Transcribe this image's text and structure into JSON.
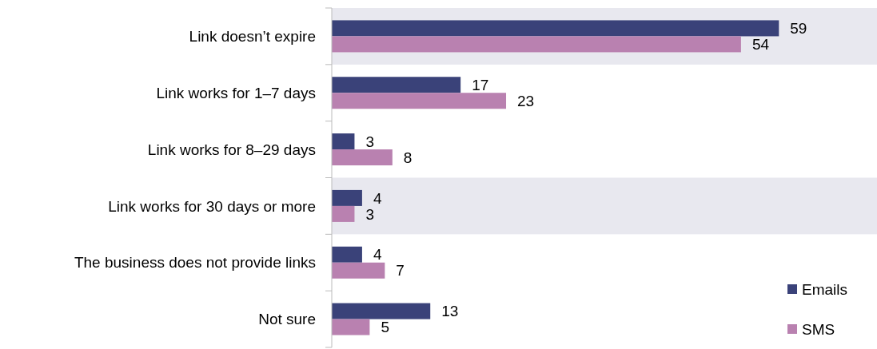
{
  "chart_data": {
    "type": "bar",
    "orientation": "horizontal",
    "categories": [
      "Link doesn’t expire",
      "Link works for 1–7 days",
      "Link works for 8–29 days",
      "Link works for 30 days or more",
      "The business does not provide links",
      "Not sure"
    ],
    "series": [
      {
        "name": "Emails",
        "color": "#3a4279",
        "values": [
          59,
          17,
          3,
          4,
          4,
          13
        ]
      },
      {
        "name": "SMS",
        "color": "#b981b0",
        "values": [
          54,
          23,
          8,
          3,
          7,
          5
        ]
      }
    ],
    "data_labels": true,
    "legend": "bottom right",
    "bands": [
      {
        "axis": "y",
        "from": "Link doesn’t expire",
        "to": "Link doesn’t expire",
        "color": "#e8e8ef"
      },
      {
        "axis": "y",
        "from": "Link works for 30 days or more",
        "to": "Link works for 30 days or more",
        "color": "#e8e8ef"
      }
    ]
  }
}
